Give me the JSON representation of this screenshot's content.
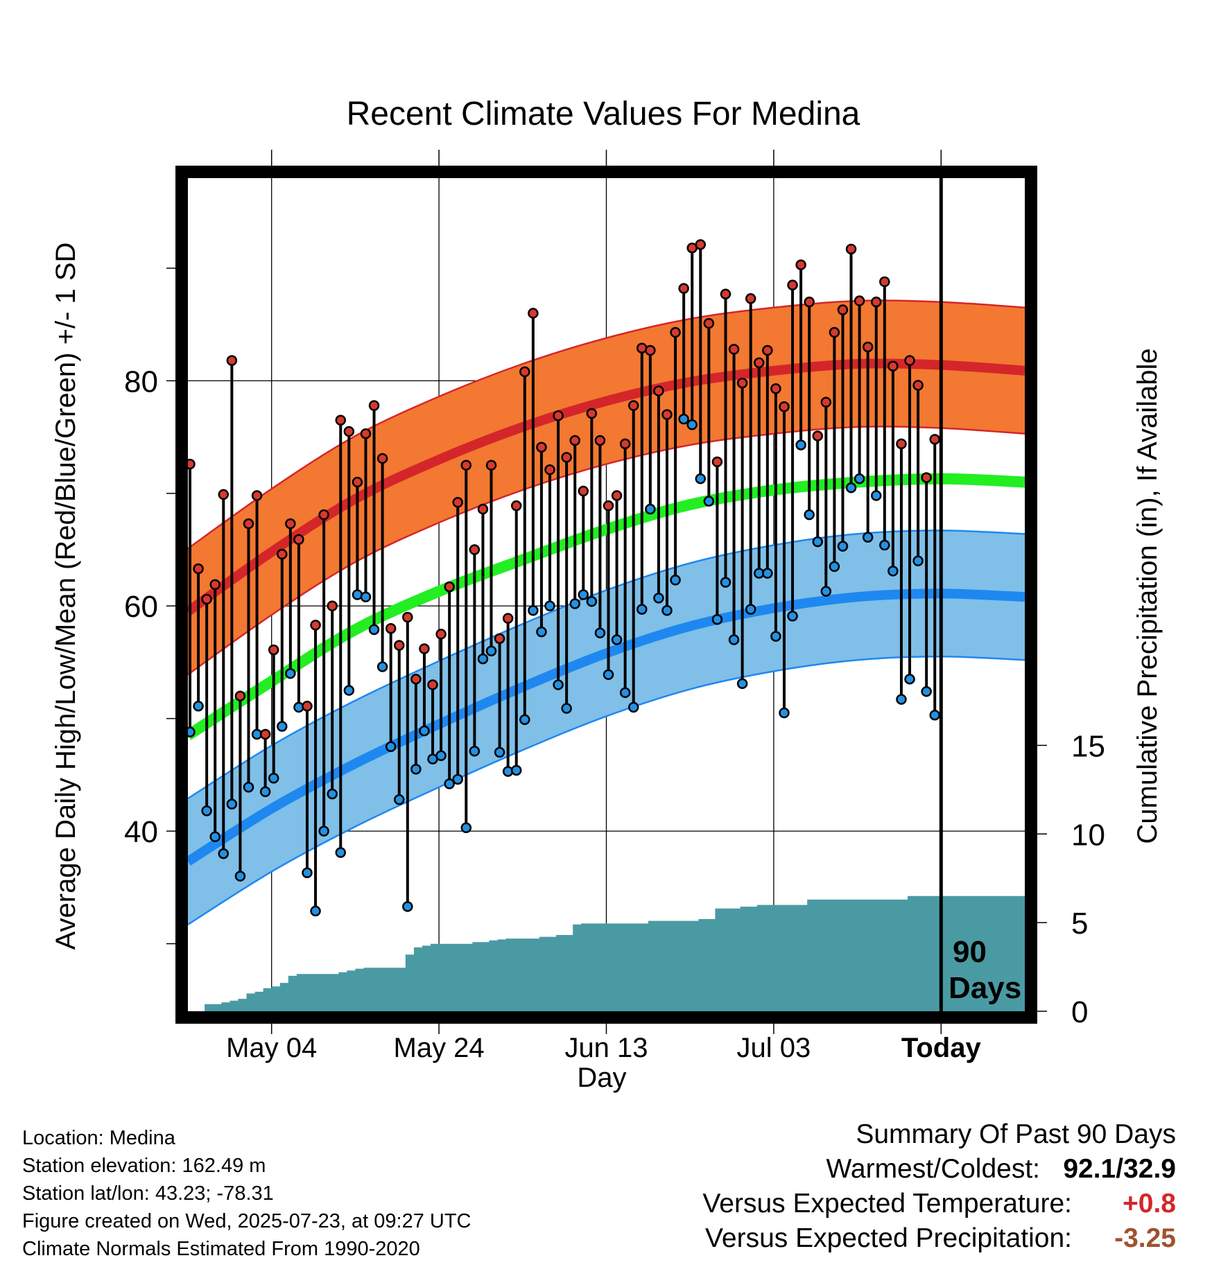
{
  "chart_data": {
    "type": "line",
    "title": "Recent Climate Values For Medina",
    "xlabel": "Day",
    "ylabel": "Average Daily High/Low/Mean (Red/Blue/Green) +/- 1 SD",
    "y2label": "Cumulative Precipitation (in), If Available",
    "x_range": [
      0,
      100
    ],
    "ylim": [
      24,
      98
    ],
    "y2lim": [
      0,
      47
    ],
    "x_ticks": [
      {
        "x": 10,
        "label": "May 04"
      },
      {
        "x": 30,
        "label": "May 24"
      },
      {
        "x": 50,
        "label": "Jun 13"
      },
      {
        "x": 70,
        "label": "Jul 03"
      },
      {
        "x": 90,
        "label": "Today"
      }
    ],
    "y_ticks": [
      {
        "value": 40,
        "label": "40"
      },
      {
        "value": 60,
        "label": "60"
      },
      {
        "value": 80,
        "label": "80"
      }
    ],
    "y_minor_ticks": [
      30,
      50,
      70,
      90
    ],
    "y2_ticks": [
      0,
      5,
      10,
      15
    ],
    "grid": true,
    "today_x": 90,
    "period_label": [
      "90",
      "Days"
    ],
    "colors": {
      "high": "#d4262a",
      "high_band": "#f37831",
      "low": "#1e88f0",
      "low_band": "#80bfe7",
      "mean": "#22ee22",
      "precip": "#4a9aa4",
      "high_dot": "#d63a2f",
      "low_dot": "#2491e3"
    },
    "normals": {
      "x": [
        0,
        10,
        20,
        30,
        40,
        50,
        60,
        70,
        80,
        90,
        100
      ],
      "high": [
        59.5,
        64.8,
        69.5,
        73.0,
        75.9,
        78.2,
        79.9,
        80.9,
        81.5,
        81.4,
        80.9
      ],
      "high_sd": 5.6,
      "low": [
        37.3,
        42.0,
        46.0,
        49.5,
        52.8,
        55.8,
        58.2,
        59.8,
        60.8,
        61.1,
        60.8
      ],
      "low_sd": 5.6,
      "mean": [
        48.5,
        53.3,
        57.9,
        61.3,
        64.1,
        66.8,
        69.0,
        70.3,
        71.0,
        71.3,
        71.0
      ]
    },
    "daily": {
      "x": [
        0,
        1,
        2,
        3,
        4,
        5,
        6,
        7,
        8,
        9,
        10,
        11,
        12,
        13,
        14,
        15,
        16,
        17,
        18,
        19,
        20,
        21,
        22,
        23,
        24,
        25,
        26,
        27,
        28,
        29,
        30,
        31,
        32,
        33,
        34,
        35,
        36,
        37,
        38,
        39,
        40,
        41,
        42,
        43,
        44,
        45,
        46,
        47,
        48,
        49,
        50,
        51,
        52,
        53,
        54,
        55,
        56,
        57,
        58,
        59,
        60,
        61,
        62,
        63,
        64,
        65,
        66,
        67,
        68,
        69,
        70,
        71,
        72,
        73,
        74,
        75,
        76,
        77,
        78,
        79,
        80,
        81,
        82,
        83,
        84,
        85,
        86,
        87,
        88,
        89
      ],
      "high": [
        72.6,
        63.3,
        60.6,
        61.9,
        69.9,
        81.8,
        52.0,
        67.3,
        69.8,
        48.6,
        56.1,
        64.6,
        67.3,
        65.9,
        51.1,
        58.3,
        68.1,
        60.0,
        76.5,
        75.5,
        71.0,
        75.3,
        77.8,
        73.1,
        58.0,
        56.5,
        59.0,
        53.5,
        56.2,
        53.0,
        57.5,
        61.7,
        69.2,
        72.5,
        65.0,
        68.6,
        72.5,
        57.1,
        58.9,
        68.9,
        80.8,
        86.0,
        74.1,
        72.1,
        76.9,
        73.2,
        74.7,
        70.2,
        77.1,
        74.7,
        68.9,
        69.8,
        74.4,
        77.8,
        82.9,
        82.7,
        79.1,
        77.0,
        84.3,
        88.2,
        91.8,
        92.1,
        85.1,
        72.8,
        87.7,
        82.8,
        79.8,
        87.3,
        81.6,
        82.7,
        79.3,
        77.7,
        88.5,
        90.3,
        87.0,
        75.1,
        78.1,
        84.3,
        86.3,
        91.7,
        87.1,
        83.0,
        87.0,
        88.8,
        81.3,
        74.4,
        81.8,
        79.6,
        71.4,
        74.8
      ],
      "low": [
        48.8,
        51.1,
        41.8,
        39.5,
        38.0,
        42.4,
        36.0,
        43.9,
        48.6,
        43.5,
        44.7,
        49.3,
        54.0,
        51.0,
        36.3,
        32.9,
        40.0,
        43.3,
        38.1,
        52.5,
        61.0,
        60.8,
        57.9,
        54.6,
        47.5,
        42.8,
        33.3,
        45.5,
        48.9,
        46.4,
        46.7,
        44.2,
        44.6,
        40.3,
        47.1,
        55.3,
        56.0,
        47.0,
        45.3,
        45.4,
        49.9,
        59.6,
        57.7,
        60.0,
        53.0,
        50.9,
        60.2,
        61.0,
        60.4,
        57.6,
        53.9,
        57.0,
        52.3,
        51.0,
        59.7,
        68.6,
        60.7,
        59.6,
        62.3,
        76.6,
        76.1,
        71.3,
        69.3,
        58.8,
        62.1,
        57.0,
        53.1,
        59.7,
        62.9,
        62.9,
        57.3,
        50.5,
        59.1,
        74.3,
        68.1,
        65.7,
        61.3,
        63.5,
        65.3,
        70.5,
        71.3,
        66.1,
        69.8,
        65.4,
        63.1,
        51.7,
        53.5,
        64.0,
        52.4,
        50.3
      ]
    },
    "precip": {
      "x": [
        2,
        4,
        5,
        6,
        7,
        8,
        9,
        10,
        11,
        12,
        13,
        18,
        19,
        20,
        21,
        26,
        27,
        28,
        29,
        34,
        36,
        37,
        38,
        42,
        44,
        46,
        47,
        55,
        61,
        63,
        66,
        68,
        74,
        86,
        100
      ],
      "y": [
        0.4,
        0.5,
        0.6,
        0.7,
        1.0,
        1.1,
        1.3,
        1.4,
        1.6,
        2.0,
        2.1,
        2.2,
        2.3,
        2.4,
        2.45,
        3.2,
        3.6,
        3.7,
        3.8,
        3.9,
        4.0,
        4.05,
        4.1,
        4.2,
        4.3,
        4.9,
        4.95,
        5.1,
        5.2,
        5.8,
        5.9,
        6.0,
        6.3,
        6.5,
        6.5
      ]
    }
  },
  "info": {
    "location": "Location: Medina",
    "elevation": "Station elevation: 162.49 m",
    "latlon": "Station lat/lon: 43.23; -78.31",
    "created": "Figure created on Wed, 2025-07-23, at 09:27 UTC",
    "normals": "Climate Normals Estimated From 1990-2020"
  },
  "summary": {
    "heading": "Summary Of Past 90 Days",
    "warm_cold_label": "Warmest/Coldest:",
    "warm_cold_value": "92.1/32.9",
    "temp_label": "Versus Expected Temperature:",
    "temp_value": "+0.8",
    "temp_color": "#d4262a",
    "precip_label": "Versus Expected Precipitation:",
    "precip_value": "-3.25",
    "precip_color": "#a0522d"
  }
}
